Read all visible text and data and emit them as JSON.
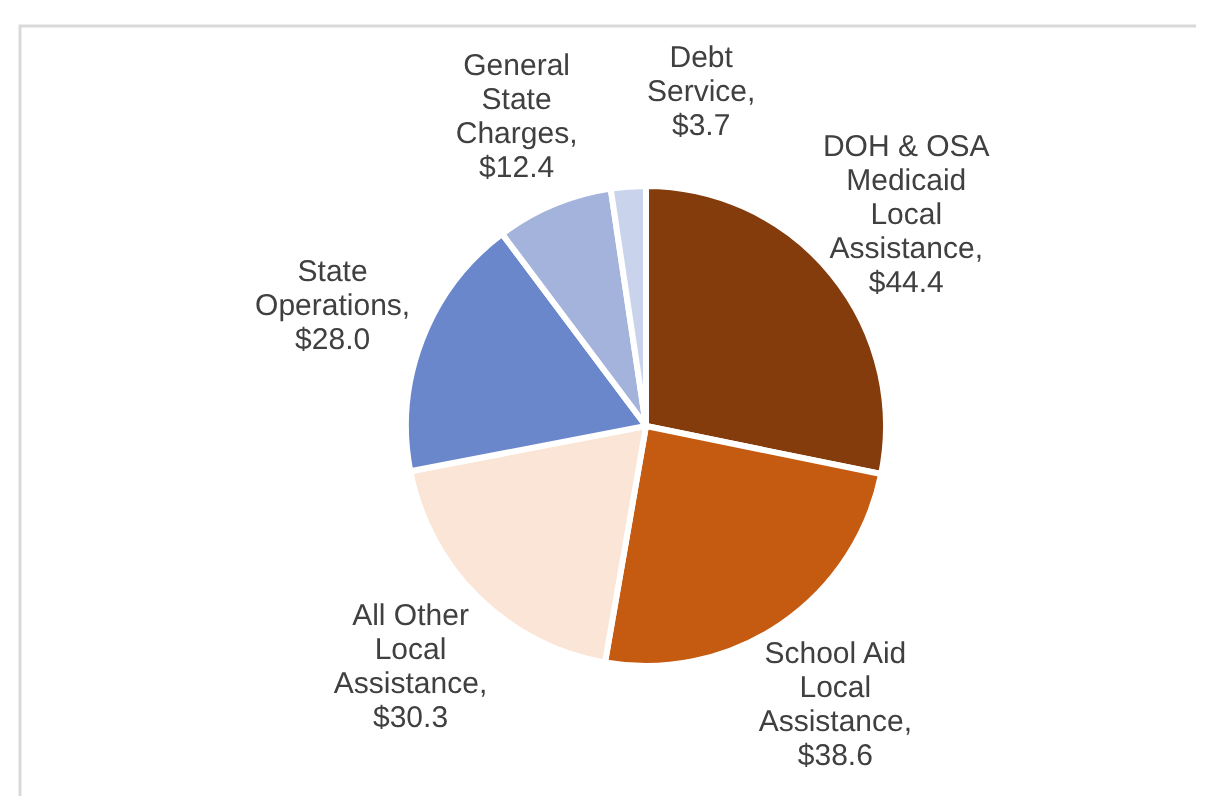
{
  "chart_data": {
    "type": "pie",
    "categories": [
      "DOH & OSA Medicaid Local Assistance",
      "School Aid Local Assistance",
      "All Other Local Assistance",
      "State Operations",
      "General State Charges",
      "Debt Service"
    ],
    "values": [
      44.4,
      38.6,
      30.3,
      28.0,
      12.4,
      3.7
    ],
    "value_labels": [
      ", $44.4",
      ", $38.6",
      ", $30.3",
      ", $28.0",
      ", $12.4",
      ", $3.7"
    ],
    "colors": [
      "#843c0c",
      "#c55a11",
      "#fbe5d6",
      "#6a87cc",
      "#a3b3db",
      "#c9d3ec"
    ]
  }
}
